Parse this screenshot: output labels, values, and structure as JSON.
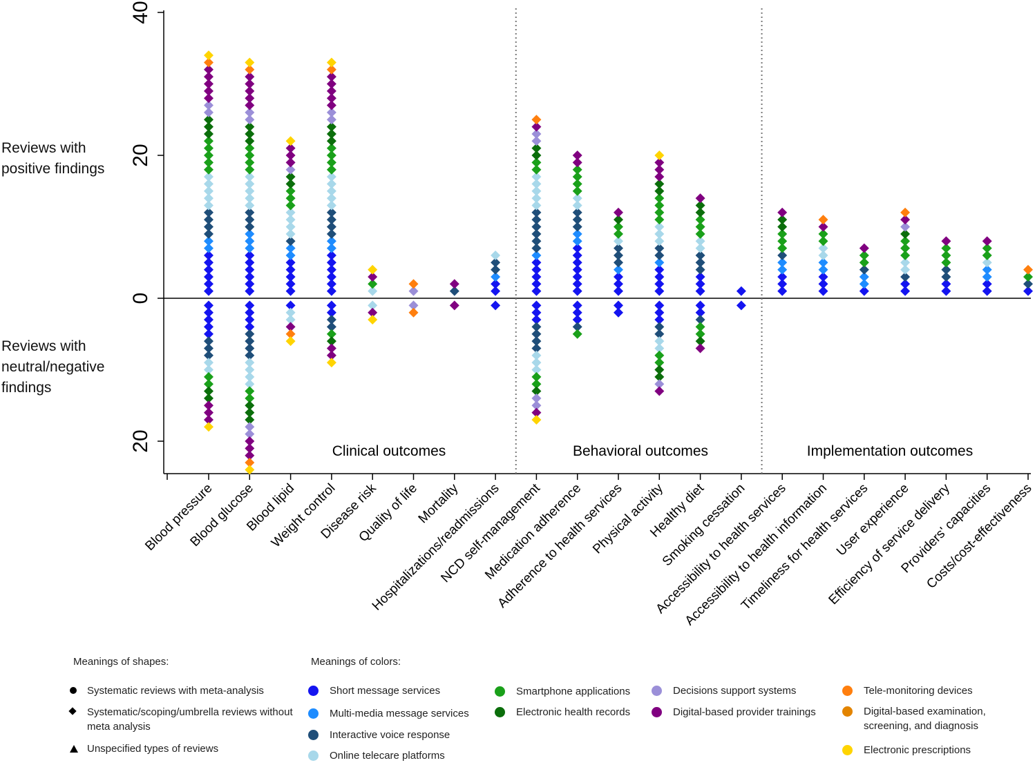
{
  "chart_data": {
    "type": "dot-stack",
    "ylabel_positive": "Reviews with positive findings",
    "ylabel_negative": "Reviews with neutral/negative findings",
    "ylim": [
      -24.5,
      40.3
    ],
    "yticks": [
      40,
      20,
      0,
      {
        "value": -20,
        "label": "20"
      }
    ],
    "group_labels": [
      "Clinical outcomes",
      "Behavioral outcomes",
      "Implementation outcomes"
    ],
    "categories": [
      "Blood pressure",
      "Blood glucose",
      "Blood lipid",
      "Weight control",
      "Disease risk",
      "Quality of life",
      "Mortality",
      "Hospitalizations/readmissions",
      "NCD self-management",
      "Medication adherence",
      "Adherence to health services",
      "Physical activity",
      "Healthy diet",
      "Smoking cessation",
      "Accessibility to health services",
      "Accessibility to health information",
      "Timeliness for health services",
      "User experience",
      "Efficiency of service delivery",
      "Providers' capacities",
      "Costs/cost-effectiveness"
    ],
    "series": [
      {
        "name": "Short message services",
        "color": "#1414f0",
        "values": [
          6,
          6,
          5,
          6,
          0,
          0,
          0,
          2,
          5,
          7,
          3,
          4,
          3,
          1,
          3,
          3,
          1,
          2,
          2,
          2,
          1
        ],
        "negative": [
          5,
          4,
          1,
          2,
          0,
          0,
          0,
          1,
          3,
          3,
          2,
          3,
          2,
          1,
          0,
          0,
          0,
          0,
          0,
          0,
          0
        ]
      },
      {
        "name": "Multi-media message services",
        "color": "#1e8cff",
        "values": [
          2,
          3,
          2,
          2,
          0,
          0,
          0,
          1,
          1,
          2,
          1,
          1,
          0,
          0,
          2,
          2,
          2,
          0,
          0,
          2,
          0
        ],
        "negative": [
          0,
          0,
          0,
          0,
          0,
          0,
          0,
          0,
          0,
          0,
          0,
          0,
          0,
          0,
          0,
          0,
          0,
          0,
          0,
          0,
          0
        ]
      },
      {
        "name": "Interactive voice response",
        "color": "#1f4e79",
        "values": [
          4,
          3,
          1,
          4,
          0,
          0,
          1,
          2,
          6,
          3,
          3,
          2,
          3,
          0,
          1,
          0,
          1,
          1,
          2,
          0,
          1
        ],
        "negative": [
          3,
          4,
          0,
          2,
          0,
          0,
          0,
          0,
          4,
          1,
          0,
          2,
          1,
          0,
          0,
          0,
          0,
          0,
          0,
          0,
          0
        ]
      },
      {
        "name": "Online telecare platforms",
        "color": "#a8d8ea",
        "values": [
          5,
          5,
          4,
          5,
          1,
          0,
          0,
          1,
          5,
          2,
          1,
          3,
          2,
          0,
          0,
          2,
          0,
          2,
          0,
          1,
          0
        ],
        "negative": [
          2,
          4,
          2,
          0,
          1,
          0,
          0,
          0,
          3,
          0,
          0,
          2,
          0,
          0,
          0,
          0,
          0,
          0,
          0,
          0,
          0
        ]
      },
      {
        "name": "Smartphone applications",
        "color": "#1aa01a",
        "values": [
          5,
          4,
          3,
          4,
          1,
          0,
          0,
          0,
          2,
          4,
          2,
          4,
          3,
          0,
          3,
          2,
          2,
          3,
          3,
          2,
          1
        ],
        "negative": [
          2,
          2,
          0,
          1,
          0,
          0,
          0,
          0,
          2,
          1,
          0,
          2,
          2,
          0,
          0,
          0,
          0,
          0,
          0,
          0,
          0
        ]
      },
      {
        "name": "Electronic health records",
        "color": "#0b6e0b",
        "values": [
          3,
          3,
          2,
          3,
          0,
          0,
          0,
          0,
          2,
          0,
          1,
          2,
          2,
          0,
          2,
          0,
          0,
          1,
          0,
          0,
          0
        ],
        "negative": [
          2,
          3,
          0,
          1,
          0,
          0,
          0,
          0,
          1,
          0,
          0,
          2,
          1,
          0,
          0,
          0,
          0,
          0,
          0,
          0,
          0
        ]
      },
      {
        "name": "Decisions support systems",
        "color": "#9b8fd8",
        "values": [
          2,
          2,
          1,
          2,
          0,
          1,
          0,
          0,
          2,
          0,
          0,
          0,
          0,
          0,
          0,
          0,
          0,
          1,
          0,
          0,
          0
        ],
        "negative": [
          0,
          2,
          0,
          0,
          0,
          1,
          0,
          0,
          2,
          0,
          0,
          1,
          0,
          0,
          0,
          0,
          0,
          0,
          0,
          0,
          0
        ]
      },
      {
        "name": "Digital-based provider trainings",
        "color": "#800080",
        "values": [
          5,
          5,
          3,
          5,
          1,
          0,
          1,
          0,
          1,
          2,
          1,
          3,
          1,
          0,
          1,
          1,
          1,
          1,
          1,
          1,
          0
        ],
        "negative": [
          3,
          3,
          1,
          2,
          1,
          0,
          1,
          0,
          1,
          0,
          0,
          1,
          1,
          0,
          0,
          0,
          0,
          0,
          0,
          0,
          0
        ]
      },
      {
        "name": "Tele-monitoring devices",
        "color": "#ff7f0e",
        "values": [
          1,
          1,
          0,
          1,
          0,
          1,
          0,
          0,
          1,
          0,
          0,
          0,
          0,
          0,
          0,
          1,
          0,
          1,
          0,
          0,
          1
        ],
        "negative": [
          0,
          1,
          1,
          0,
          0,
          1,
          0,
          0,
          0,
          0,
          0,
          0,
          0,
          0,
          0,
          0,
          0,
          0,
          0,
          0,
          0
        ]
      },
      {
        "name": "Digital-based examination, screening, and diagnosis",
        "color": "#e38400",
        "values": [
          0,
          0,
          0,
          0,
          0,
          0,
          0,
          0,
          0,
          0,
          0,
          0,
          0,
          0,
          0,
          0,
          0,
          0,
          0,
          0,
          0
        ],
        "negative": [
          0,
          0,
          0,
          0,
          0,
          0,
          0,
          0,
          0,
          0,
          0,
          0,
          0,
          0,
          0,
          0,
          0,
          0,
          0,
          0,
          0
        ]
      },
      {
        "name": "Electronic prescriptions",
        "color": "#ffd400",
        "values": [
          1,
          1,
          1,
          1,
          1,
          0,
          0,
          0,
          0,
          0,
          0,
          1,
          0,
          0,
          0,
          0,
          0,
          0,
          0,
          0,
          0
        ],
        "negative": [
          1,
          1,
          1,
          1,
          1,
          0,
          0,
          0,
          1,
          0,
          0,
          0,
          0,
          0,
          0,
          0,
          0,
          0,
          0,
          0,
          0
        ]
      }
    ],
    "shapes_title": "Meanings of shapes:",
    "shapes": [
      "Systematic reviews with meta-analysis",
      "Systematic/scoping/umbrella reviews without meta analysis",
      "Unspecified types of reviews"
    ],
    "colors_title": "Meanings of colors:"
  }
}
